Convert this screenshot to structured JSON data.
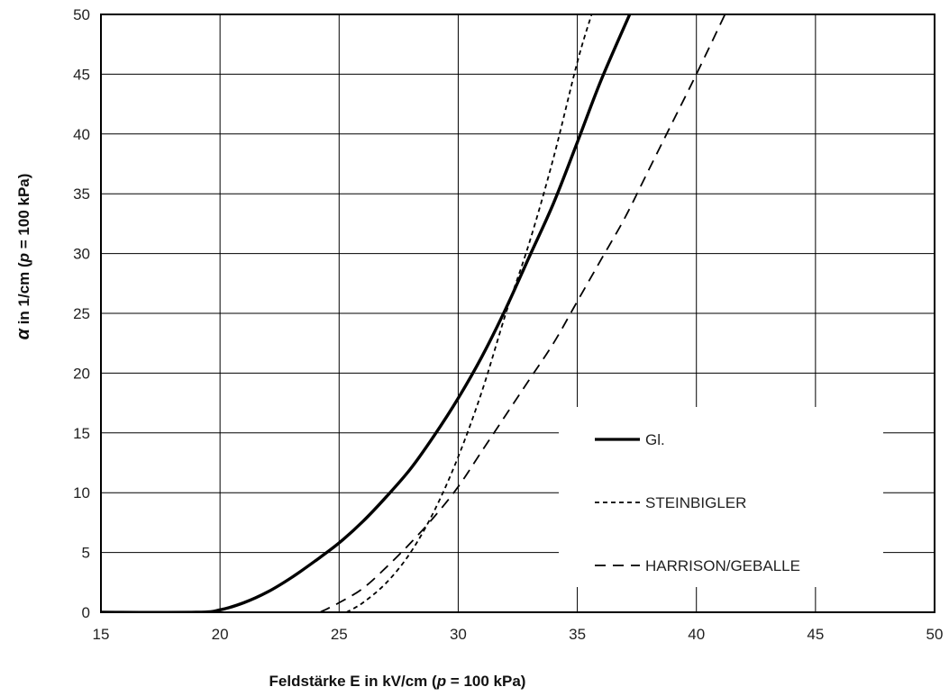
{
  "chart_data": {
    "type": "line",
    "title": "",
    "xlabel": {
      "prefix": "Feldstärke E in kV/cm (",
      "italic": "p",
      "suffix": " = 100 kPa)"
    },
    "ylabel": {
      "symbol": "α",
      "prefix": "  in  1/cm (",
      "italic": "p",
      "suffix": " = 100 kPa)"
    },
    "xlim": [
      15,
      50
    ],
    "ylim": [
      0,
      50
    ],
    "xticks": [
      "15",
      "20",
      "25",
      "30",
      "35",
      "40",
      "45",
      "50"
    ],
    "yticks": [
      "0",
      "5",
      "10",
      "15",
      "20",
      "25",
      "30",
      "35",
      "40",
      "45",
      "50"
    ],
    "grid": true,
    "legend_position": "bottom-right",
    "series": [
      {
        "name": "Gl.",
        "style": "solid",
        "x": [
          15,
          19,
          20,
          21,
          22,
          23,
          24,
          25,
          26,
          27,
          28,
          29,
          30,
          31,
          32,
          33,
          34,
          35,
          36,
          37.2
        ],
        "y": [
          0,
          0,
          0.2,
          0.8,
          1.7,
          2.9,
          4.3,
          5.8,
          7.6,
          9.7,
          12.0,
          14.8,
          17.9,
          21.4,
          25.4,
          29.8,
          34.2,
          39.3,
          44.5,
          50
        ]
      },
      {
        "name": "STEINBIGLER",
        "style": "short-dash",
        "x": [
          25.3,
          26,
          27,
          28,
          29,
          30,
          31,
          32,
          33,
          34,
          35,
          35.6
        ],
        "y": [
          0,
          0.8,
          2.5,
          5.0,
          8.5,
          13.0,
          18.5,
          25.0,
          31.0,
          38.0,
          46.0,
          50
        ]
      },
      {
        "name": "HARRISON/GEBALLE",
        "style": "long-dash",
        "x": [
          24.2,
          25,
          26,
          27,
          28,
          29,
          30,
          31,
          32,
          33,
          34,
          35,
          36,
          37,
          38,
          39,
          40,
          41.2
        ],
        "y": [
          0,
          0.8,
          2.0,
          3.8,
          5.8,
          8.0,
          10.5,
          13.5,
          16.5,
          19.5,
          22.5,
          26.0,
          29.5,
          33.0,
          37.0,
          41.0,
          45.0,
          50
        ]
      }
    ]
  }
}
